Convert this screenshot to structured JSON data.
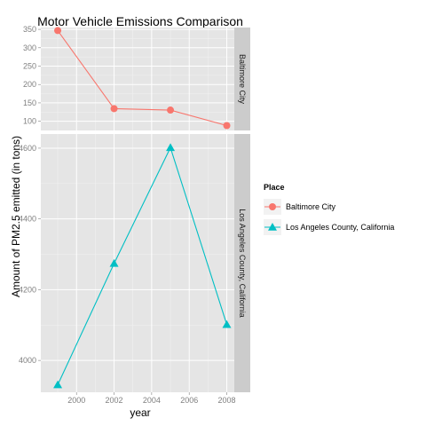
{
  "chart_data": {
    "type": "line",
    "title": "Motor Vehicle Emissions Comparison",
    "xlabel": "year",
    "ylabel": "Amount of PM2.5 emitted (in tons)",
    "x": [
      1999,
      2002,
      2005,
      2008
    ],
    "x_ticks": [
      "2000",
      "2002",
      "2004",
      "2006",
      "2008"
    ],
    "grid": true,
    "legend": {
      "title": "Place",
      "placement": "right"
    },
    "facets": [
      {
        "strip_label": "Baltimore City",
        "series_index": 0,
        "ylim": [
          75,
          355
        ],
        "y_ticks": [
          "100",
          "150",
          "200",
          "250",
          "300",
          "350"
        ]
      },
      {
        "strip_label": "Los Angeles County, California",
        "series_index": 1,
        "ylim": [
          3910,
          4640
        ],
        "y_ticks": [
          "4000",
          "4200",
          "4400",
          "4600"
        ]
      }
    ],
    "series": [
      {
        "name": "Baltimore City",
        "marker": "circle",
        "color": "#F8766D",
        "values": [
          346.8,
          134.3,
          130.4,
          88.3
        ]
      },
      {
        "name": "Los Angeles County, California",
        "marker": "triangle",
        "color": "#00BFC4",
        "values": [
          3931.1,
          4274.0,
          4601.4,
          4101.3
        ]
      }
    ]
  }
}
